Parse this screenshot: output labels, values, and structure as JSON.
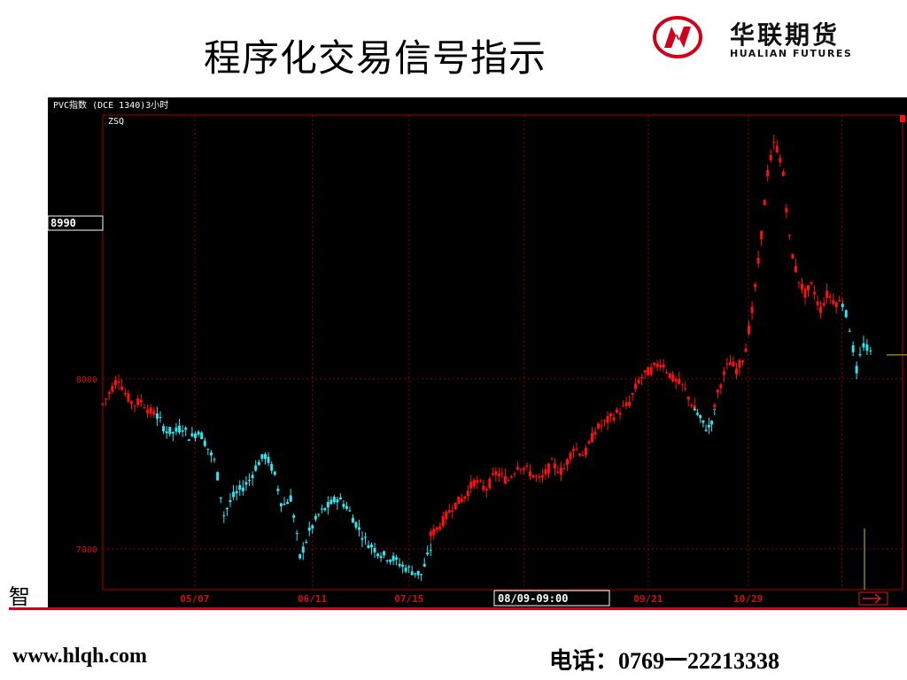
{
  "slide": {
    "title": "程序化交易信号指示",
    "left_fragment": "智",
    "website": "www.hlqh.com",
    "phone": "电话：0769一22213338"
  },
  "logo": {
    "cn": "华联期货",
    "en": "HUALIAN FUTURES",
    "colors": {
      "ring": "#d0021b",
      "text": "#111111"
    }
  },
  "chart_data": {
    "type": "candlestick",
    "header": "PVC指数 (DCE 1340)3小时",
    "indicator": "ZSQ",
    "price_box": "8990",
    "cursor_date_box": "08/09-09:00",
    "y_ticks": [
      {
        "label": "8000",
        "value": 8000
      },
      {
        "label": "7000",
        "value": 7000
      }
    ],
    "ylim": [
      6760,
      9550
    ],
    "x_ticks": [
      {
        "label": "05/07",
        "pos": 0.115
      },
      {
        "label": "06/11",
        "pos": 0.262
      },
      {
        "label": "07/15",
        "pos": 0.383
      },
      {
        "label": "09/21",
        "pos": 0.682
      },
      {
        "label": "10/29",
        "pos": 0.807
      }
    ],
    "grid_v": [
      0.115,
      0.262,
      0.383,
      0.527,
      0.682,
      0.807,
      0.924
    ],
    "colors": {
      "background": "#000000",
      "grid": "#8b0000",
      "axis": "#aa0000",
      "bull_signal": "#ff1010",
      "bear_signal": "#2ee6f0",
      "tick_text": "#d01010",
      "header_text": "#ffffff"
    },
    "segments": [
      {
        "signal": "bull",
        "start": 0.0,
        "end": 0.068,
        "prices": [
          7850,
          7930,
          8010,
          7900,
          7850,
          7870,
          7810,
          7780
        ]
      },
      {
        "signal": "bear",
        "start": 0.068,
        "end": 0.235,
        "prices": [
          7780,
          7700,
          7680,
          7720,
          7650,
          7700,
          7600,
          7500,
          7200,
          7300,
          7350,
          7400,
          7500,
          7550,
          7450,
          7250,
          7300
        ]
      },
      {
        "signal": "bear",
        "start": 0.235,
        "end": 0.41,
        "prices": [
          7300,
          6950,
          7100,
          7200,
          7250,
          7300,
          7250,
          7150,
          7050,
          7000,
          6960,
          6940,
          6900,
          6870,
          6850,
          7000
        ]
      },
      {
        "signal": "bull",
        "start": 0.41,
        "end": 0.74,
        "prices": [
          7080,
          7150,
          7250,
          7300,
          7400,
          7350,
          7450,
          7400,
          7500,
          7450,
          7400,
          7500,
          7450,
          7600,
          7550,
          7700,
          7750,
          7800,
          7850,
          8000,
          8050,
          8100,
          8000,
          7950,
          7820
        ]
      },
      {
        "signal": "bear",
        "start": 0.74,
        "end": 0.765,
        "prices": [
          7820,
          7750,
          7700,
          7800
        ]
      },
      {
        "signal": "bull",
        "start": 0.765,
        "end": 0.925,
        "prices": [
          7850,
          8000,
          8100,
          8050,
          8150,
          8400,
          8750,
          9200,
          9400,
          9250,
          8800,
          8600,
          8500,
          8550,
          8400,
          8500,
          8450,
          8450
        ]
      },
      {
        "signal": "bear",
        "start": 0.925,
        "end": 0.96,
        "prices": [
          8450,
          8300,
          8050,
          8200,
          8150
        ]
      }
    ]
  }
}
